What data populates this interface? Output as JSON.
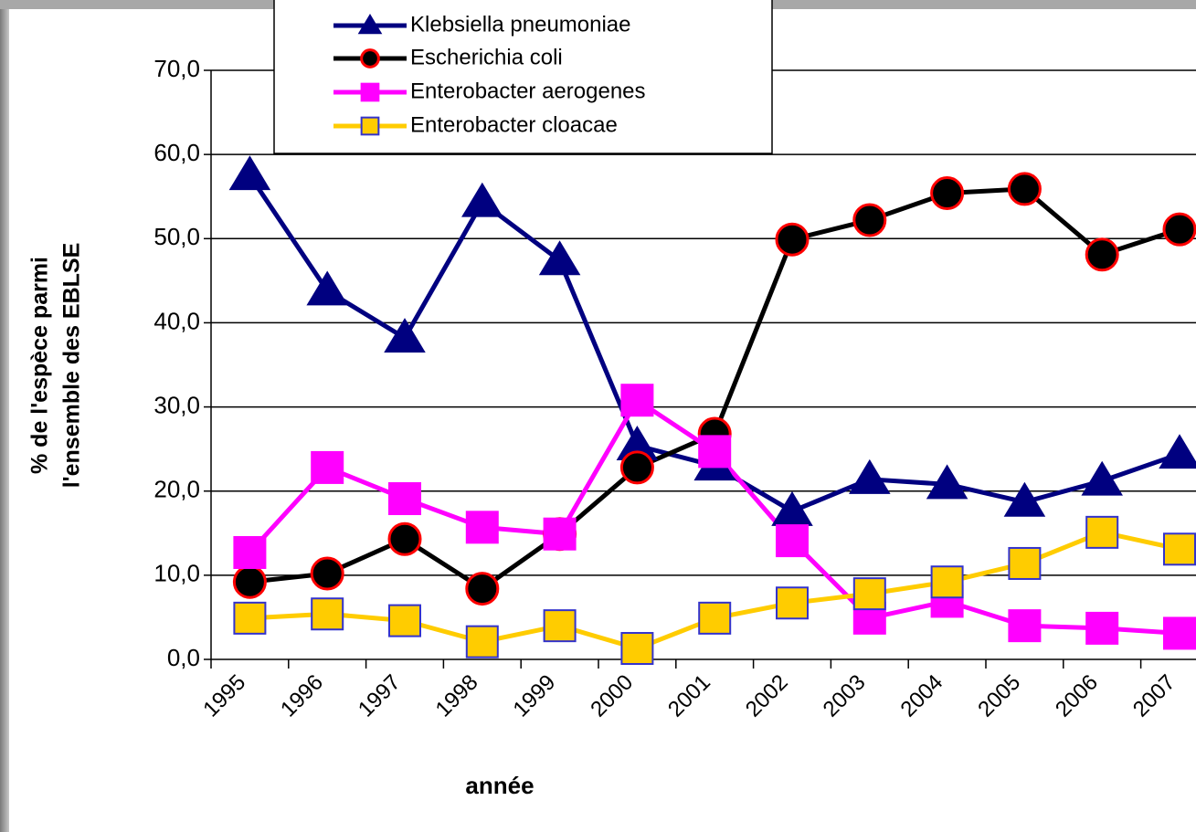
{
  "chart_data": {
    "type": "line",
    "ylabel": [
      "% de l'espèce parmi",
      "l'ensemble des EBLSE"
    ],
    "xlabel": "année",
    "categories": [
      "1995",
      "1996",
      "1997",
      "1998",
      "1999",
      "2000",
      "2001",
      "2002",
      "2003",
      "2004",
      "2005",
      "2006",
      "2007"
    ],
    "series": [
      {
        "name": "Klebsiella pneumoniae",
        "color": "#000080",
        "marker": "triangle",
        "marker_fill": "#000080",
        "marker_edge": "#000080",
        "values": [
          57.5,
          43.8,
          38.2,
          54.3,
          47.4,
          25.4,
          23.0,
          17.6,
          21.4,
          20.8,
          18.7,
          21.2,
          24.4
        ]
      },
      {
        "name": "Escherichia coli",
        "color": "#000000",
        "marker": "circle",
        "marker_fill": "#000000",
        "marker_edge": "#ff0000",
        "values": [
          9.2,
          10.2,
          14.3,
          8.4,
          14.9,
          22.8,
          26.8,
          49.9,
          52.2,
          55.4,
          55.9,
          48.1,
          51.1
        ]
      },
      {
        "name": "Enterobacter aerogenes",
        "color": "#ff00ff",
        "marker": "square",
        "marker_fill": "#ff00ff",
        "marker_edge": "#ff00ff",
        "values": [
          12.7,
          22.8,
          19.1,
          15.7,
          14.9,
          30.8,
          24.7,
          14.1,
          4.9,
          6.9,
          4.0,
          3.7,
          3.1
        ]
      },
      {
        "name": "Enterobacter cloacae",
        "color": "#ffcc00",
        "marker": "square",
        "marker_fill": "#ffcc00",
        "marker_edge": "#3333cc",
        "values": [
          4.9,
          5.4,
          4.6,
          2.1,
          4.0,
          1.3,
          4.9,
          6.7,
          7.8,
          9.2,
          11.4,
          15.1,
          13.1
        ]
      }
    ],
    "ylim": [
      0,
      70
    ],
    "yticks": [
      {
        "value": 0,
        "label": "0,0"
      },
      {
        "value": 10,
        "label": "10,0"
      },
      {
        "value": 20,
        "label": "20,0"
      },
      {
        "value": 30,
        "label": "30,0"
      },
      {
        "value": 40,
        "label": "40,0"
      },
      {
        "value": 50,
        "label": "50,0"
      },
      {
        "value": 60,
        "label": "60,0"
      },
      {
        "value": 70,
        "label": "70,0"
      }
    ],
    "grid": true
  }
}
